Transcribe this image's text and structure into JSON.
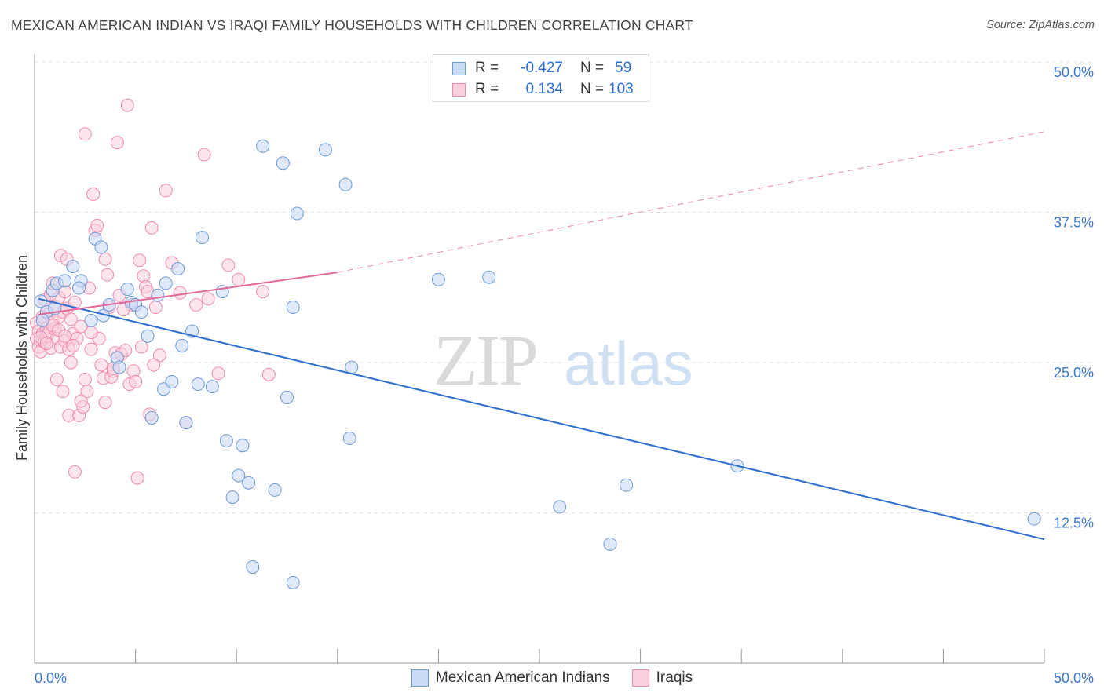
{
  "title": "MEXICAN AMERICAN INDIAN VS IRAQI FAMILY HOUSEHOLDS WITH CHILDREN CORRELATION CHART",
  "source": "Source: ZipAtlas.com",
  "watermark": {
    "zip": "ZIP",
    "atlas": "atlas"
  },
  "stats": {
    "blue": {
      "r_label": "R =",
      "r_value": "-0.427",
      "n_label": "N =",
      "n_value": "59"
    },
    "pink": {
      "r_label": "R =",
      "r_value": "0.134",
      "n_label": "N =",
      "n_value": "103"
    }
  },
  "legend": {
    "blue": "Mexican American Indians",
    "pink": "Iraqis"
  },
  "colors": {
    "blue_fill": "#c9dbf5",
    "blue_stroke": "#6d9ad8",
    "blue_line": "#2f6fd0",
    "pink_fill": "#f9cfdc",
    "pink_stroke": "#ee8bab",
    "pink_line": "#e4679a",
    "grid": "#e3e3e3",
    "axis_label": "#3b78cf"
  },
  "chart_data": {
    "type": "scatter",
    "title": "MEXICAN AMERICAN INDIAN VS IRAQI FAMILY HOUSEHOLDS WITH CHILDREN CORRELATION CHART",
    "xlabel": "",
    "ylabel": "Family Households with Children",
    "xlim": [
      0,
      50
    ],
    "ylim": [
      0,
      50
    ],
    "x_tick_labels": [
      "0.0%",
      "50.0%"
    ],
    "y_ticks": [
      12.5,
      25.0,
      37.5,
      50.0
    ],
    "y_tick_labels": [
      "12.5%",
      "25.0%",
      "37.5%",
      "50.0%"
    ],
    "grid": true,
    "legend_position": "bottom-center",
    "series": [
      {
        "name": "Mexican American Indians",
        "color": "#6d9ad8",
        "trend": {
          "x": [
            0.2,
            50.0
          ],
          "y": [
            30.3,
            10.3
          ],
          "style": "solid"
        },
        "points": [
          [
            0.3,
            30.1
          ],
          [
            0.6,
            29.2
          ],
          [
            0.9,
            31.0
          ],
          [
            1.0,
            29.5
          ],
          [
            1.1,
            31.6
          ],
          [
            1.5,
            31.8
          ],
          [
            1.9,
            33.0
          ],
          [
            2.3,
            31.8
          ],
          [
            2.2,
            31.2
          ],
          [
            2.8,
            28.5
          ],
          [
            3.0,
            35.3
          ],
          [
            3.3,
            34.6
          ],
          [
            3.4,
            28.9
          ],
          [
            3.7,
            29.8
          ],
          [
            4.1,
            25.4
          ],
          [
            4.2,
            24.6
          ],
          [
            4.6,
            31.1
          ],
          [
            4.8,
            30.0
          ],
          [
            5.0,
            29.8
          ],
          [
            5.3,
            29.2
          ],
          [
            5.6,
            27.2
          ],
          [
            5.8,
            20.4
          ],
          [
            6.1,
            30.6
          ],
          [
            6.4,
            22.8
          ],
          [
            6.5,
            31.6
          ],
          [
            6.8,
            23.4
          ],
          [
            7.1,
            32.8
          ],
          [
            7.3,
            26.4
          ],
          [
            7.5,
            20.0
          ],
          [
            7.8,
            27.6
          ],
          [
            8.1,
            23.2
          ],
          [
            8.3,
            35.4
          ],
          [
            8.8,
            23.0
          ],
          [
            9.3,
            30.9
          ],
          [
            9.5,
            18.5
          ],
          [
            9.8,
            13.8
          ],
          [
            10.1,
            15.6
          ],
          [
            10.3,
            18.1
          ],
          [
            10.6,
            15.0
          ],
          [
            10.8,
            8.0
          ],
          [
            11.3,
            43.0
          ],
          [
            11.9,
            14.4
          ],
          [
            12.3,
            41.6
          ],
          [
            12.5,
            22.1
          ],
          [
            12.8,
            29.6
          ],
          [
            12.8,
            6.7
          ],
          [
            13.0,
            37.4
          ],
          [
            14.4,
            42.7
          ],
          [
            15.4,
            39.8
          ],
          [
            15.6,
            18.7
          ],
          [
            15.7,
            24.6
          ],
          [
            20.0,
            31.9
          ],
          [
            22.5,
            32.1
          ],
          [
            26.0,
            13.0
          ],
          [
            28.5,
            9.9
          ],
          [
            29.3,
            14.8
          ],
          [
            34.8,
            16.4
          ],
          [
            49.5,
            12.0
          ],
          [
            0.4,
            28.5
          ]
        ]
      },
      {
        "name": "Iraqis",
        "color": "#ee8bab",
        "trend": {
          "x": [
            0.2,
            15.0
          ],
          "y": [
            29.0,
            32.5
          ],
          "style": "solid",
          "extension_x": [
            15.0,
            50.0
          ],
          "extension_y": [
            32.5,
            44.2
          ],
          "extension_style": "dashed"
        },
        "points": [
          [
            0.1,
            27.0
          ],
          [
            0.1,
            28.3
          ],
          [
            0.2,
            26.3
          ],
          [
            0.2,
            27.6
          ],
          [
            0.3,
            26.8
          ],
          [
            0.3,
            25.9
          ],
          [
            0.4,
            27.4
          ],
          [
            0.4,
            28.8
          ],
          [
            0.5,
            26.7
          ],
          [
            0.5,
            30.2
          ],
          [
            0.6,
            27.9
          ],
          [
            0.6,
            27.2
          ],
          [
            0.7,
            29.0
          ],
          [
            0.7,
            27.5
          ],
          [
            0.8,
            30.7
          ],
          [
            0.8,
            26.2
          ],
          [
            0.9,
            28.4
          ],
          [
            0.9,
            31.6
          ],
          [
            1.0,
            27.8
          ],
          [
            1.0,
            29.7
          ],
          [
            1.1,
            27.0
          ],
          [
            1.1,
            23.6
          ],
          [
            1.2,
            28.8
          ],
          [
            1.2,
            30.4
          ],
          [
            1.3,
            33.9
          ],
          [
            1.3,
            26.3
          ],
          [
            1.4,
            29.2
          ],
          [
            1.4,
            22.6
          ],
          [
            1.5,
            30.9
          ],
          [
            1.5,
            26.8
          ],
          [
            1.6,
            29.5
          ],
          [
            1.6,
            33.6
          ],
          [
            1.7,
            26.1
          ],
          [
            1.7,
            20.6
          ],
          [
            1.8,
            28.6
          ],
          [
            1.8,
            25.0
          ],
          [
            1.9,
            27.4
          ],
          [
            2.0,
            15.9
          ],
          [
            2.0,
            30.0
          ],
          [
            2.1,
            27.0
          ],
          [
            2.2,
            20.6
          ],
          [
            2.3,
            28.0
          ],
          [
            2.4,
            21.3
          ],
          [
            2.5,
            23.6
          ],
          [
            2.5,
            44.0
          ],
          [
            2.6,
            22.6
          ],
          [
            2.7,
            31.2
          ],
          [
            2.8,
            26.1
          ],
          [
            2.9,
            39.0
          ],
          [
            3.0,
            36.0
          ],
          [
            3.1,
            36.4
          ],
          [
            3.2,
            27.0
          ],
          [
            3.3,
            24.8
          ],
          [
            3.4,
            23.7
          ],
          [
            3.5,
            21.7
          ],
          [
            3.5,
            33.6
          ],
          [
            3.6,
            32.3
          ],
          [
            3.7,
            29.6
          ],
          [
            3.8,
            23.8
          ],
          [
            3.9,
            24.3
          ],
          [
            4.0,
            25.8
          ],
          [
            4.1,
            43.3
          ],
          [
            4.2,
            30.6
          ],
          [
            4.3,
            25.7
          ],
          [
            4.5,
            26.0
          ],
          [
            4.6,
            46.4
          ],
          [
            4.7,
            23.2
          ],
          [
            4.8,
            29.8
          ],
          [
            4.9,
            24.3
          ],
          [
            5.0,
            23.4
          ],
          [
            5.1,
            15.4
          ],
          [
            5.2,
            33.5
          ],
          [
            5.3,
            26.3
          ],
          [
            5.4,
            32.2
          ],
          [
            5.5,
            31.3
          ],
          [
            5.6,
            30.9
          ],
          [
            5.7,
            20.7
          ],
          [
            5.8,
            36.2
          ],
          [
            6.0,
            29.6
          ],
          [
            6.2,
            25.6
          ],
          [
            6.5,
            39.3
          ],
          [
            6.8,
            33.3
          ],
          [
            7.2,
            30.8
          ],
          [
            7.5,
            20.0
          ],
          [
            8.0,
            29.8
          ],
          [
            8.4,
            42.3
          ],
          [
            8.6,
            30.3
          ],
          [
            9.1,
            24.1
          ],
          [
            9.6,
            33.1
          ],
          [
            10.1,
            31.9
          ],
          [
            11.3,
            30.9
          ],
          [
            11.6,
            24.0
          ],
          [
            0.3,
            27.1
          ],
          [
            0.6,
            26.6
          ],
          [
            0.9,
            28.1
          ],
          [
            1.2,
            27.7
          ],
          [
            1.5,
            27.2
          ],
          [
            2.8,
            27.5
          ],
          [
            3.9,
            24.5
          ],
          [
            4.4,
            29.4
          ],
          [
            5.9,
            24.8
          ],
          [
            2.3,
            21.8
          ],
          [
            1.9,
            26.4
          ]
        ]
      }
    ]
  }
}
